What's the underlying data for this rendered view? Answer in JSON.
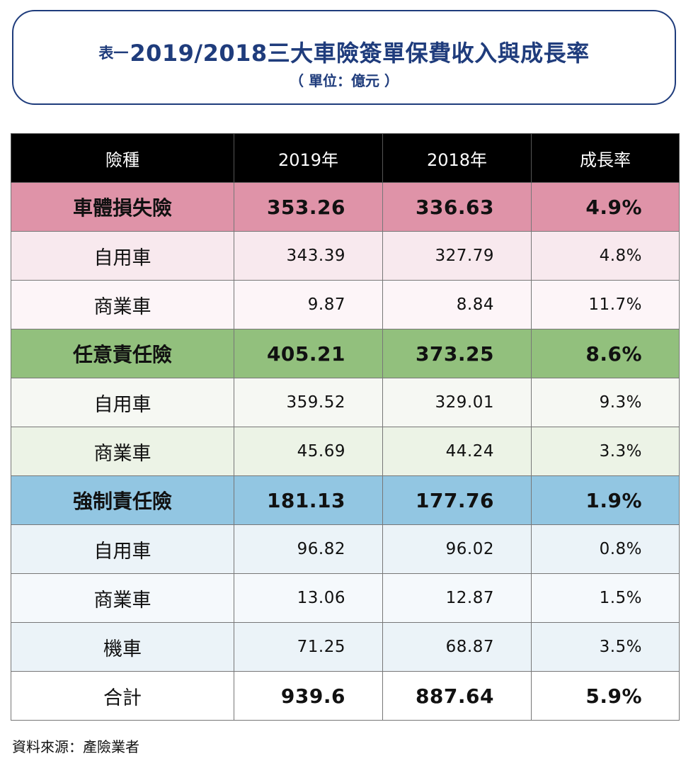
{
  "title": {
    "prefix": "表一",
    "main": "2019/2018三大車險簽單保費收入與成長率",
    "unit": "（ 單位：億元 ）"
  },
  "table": {
    "headers": [
      "險種",
      "2019年",
      "2018年",
      "成長率"
    ],
    "rows": [
      {
        "type": "category",
        "name": "車體損失險",
        "y2019": "353.26",
        "y2018": "336.63",
        "growth": "4.9%",
        "bg": "#df93a8"
      },
      {
        "type": "item",
        "name": "自用車",
        "y2019": "343.39",
        "y2018": "327.79",
        "growth": "4.8%",
        "bg": "#f8e9ee"
      },
      {
        "type": "item",
        "name": "商業車",
        "y2019": "9.87",
        "y2018": "8.84",
        "growth": "11.7%",
        "bg": "#fdf5f8"
      },
      {
        "type": "category",
        "name": "任意責任險",
        "y2019": "405.21",
        "y2018": "373.25",
        "growth": "8.6%",
        "bg": "#92c07d"
      },
      {
        "type": "item",
        "name": "自用車",
        "y2019": "359.52",
        "y2018": "329.01",
        "growth": "9.3%",
        "bg": "#f6f8f3"
      },
      {
        "type": "item",
        "name": "商業車",
        "y2019": "45.69",
        "y2018": "44.24",
        "growth": "3.3%",
        "bg": "#ecf3e6"
      },
      {
        "type": "category",
        "name": "強制責任險",
        "y2019": "181.13",
        "y2018": "177.76",
        "growth": "1.9%",
        "bg": "#92c6e2"
      },
      {
        "type": "item",
        "name": "自用車",
        "y2019": "96.82",
        "y2018": "96.02",
        "growth": "0.8%",
        "bg": "#ebf3f8"
      },
      {
        "type": "item",
        "name": "商業車",
        "y2019": "13.06",
        "y2018": "12.87",
        "growth": "1.5%",
        "bg": "#f5f9fc"
      },
      {
        "type": "item",
        "name": "機車",
        "y2019": "71.25",
        "y2018": "68.87",
        "growth": "3.5%",
        "bg": "#ebf3f8"
      },
      {
        "type": "total",
        "name": "合計",
        "y2019": "939.6",
        "y2018": "887.64",
        "growth": "5.9%",
        "bg": "#ffffff"
      }
    ]
  },
  "source": "資料來源：產險業者"
}
